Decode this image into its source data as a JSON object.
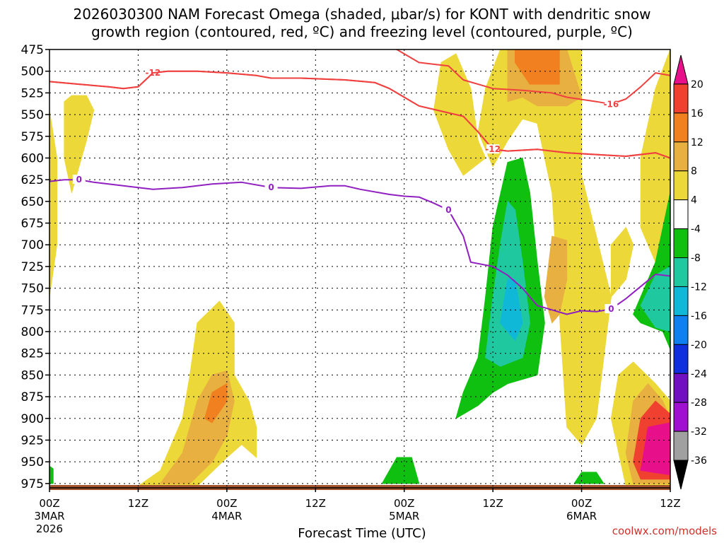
{
  "chart_data": {
    "type": "time-height",
    "title_line1": "2026030300 NAM Forecast Omega (shaded, μbar/s) for KONT with dendritic snow",
    "title_line2": "growth region (contoured, red, ºC) and freezing level (contoured, purple, ºC)",
    "xlabel": "Forecast Time (UTC)",
    "credit": "coolwx.com/models",
    "y_ticks": [
      475,
      500,
      525,
      550,
      575,
      600,
      625,
      650,
      675,
      700,
      725,
      750,
      775,
      800,
      825,
      850,
      875,
      900,
      925,
      950,
      975
    ],
    "ylim": [
      475,
      980
    ],
    "x_range_hours": [
      0,
      84
    ],
    "x_ticks": [
      {
        "hour": 0,
        "label": "00Z",
        "sub1": "3MAR",
        "sub2": "2026"
      },
      {
        "hour": 12,
        "label": "12Z",
        "sub1": "",
        "sub2": ""
      },
      {
        "hour": 24,
        "label": "00Z",
        "sub1": "4MAR",
        "sub2": ""
      },
      {
        "hour": 36,
        "label": "12Z",
        "sub1": "",
        "sub2": ""
      },
      {
        "hour": 48,
        "label": "00Z",
        "sub1": "5MAR",
        "sub2": ""
      },
      {
        "hour": 60,
        "label": "12Z",
        "sub1": "",
        "sub2": ""
      },
      {
        "hour": 72,
        "label": "00Z",
        "sub1": "6MAR",
        "sub2": ""
      },
      {
        "hour": 84,
        "label": "12Z",
        "sub1": "",
        "sub2": ""
      }
    ],
    "colorbar": {
      "labels": [
        "20",
        "16",
        "12",
        "8",
        "4",
        "-4",
        "-8",
        "-12",
        "-16",
        "-20",
        "-24",
        "-28",
        "-32",
        "-36"
      ],
      "colors": [
        "#e8108a",
        "#f04030",
        "#f08020",
        "#e8b040",
        "#ecd838",
        "#ffffff",
        "#10c010",
        "#20c8a0",
        "#10b8d8",
        "#1080f0",
        "#1030e0",
        "#7010c0",
        "#a010d0",
        "#a0a0a0",
        "#000000"
      ]
    },
    "contours": {
      "dendritic_lower": {
        "label": "-12",
        "color": "#f04040",
        "points": [
          [
            0,
            512
          ],
          [
            4,
            515
          ],
          [
            8,
            518
          ],
          [
            10,
            520
          ],
          [
            12,
            518
          ],
          [
            13,
            510
          ],
          [
            14,
            502
          ],
          [
            16,
            500
          ],
          [
            20,
            500
          ],
          [
            24,
            502
          ],
          [
            28,
            505
          ],
          [
            30,
            508
          ],
          [
            34,
            508
          ],
          [
            40,
            510
          ],
          [
            44,
            513
          ],
          [
            46,
            520
          ],
          [
            48,
            530
          ],
          [
            50,
            540
          ],
          [
            54,
            548
          ],
          [
            56,
            552
          ],
          [
            58,
            570
          ],
          [
            60,
            590
          ],
          [
            62,
            592
          ],
          [
            66,
            590
          ],
          [
            70,
            594
          ],
          [
            74,
            596
          ],
          [
            78,
            598
          ],
          [
            82,
            594
          ],
          [
            84,
            600
          ]
        ]
      },
      "dendritic_upper": {
        "label": "-16",
        "color": "#f04040",
        "points": [
          [
            46,
            470
          ],
          [
            48,
            480
          ],
          [
            50,
            490
          ],
          [
            52,
            492
          ],
          [
            54,
            494
          ],
          [
            56,
            510
          ],
          [
            60,
            520
          ],
          [
            64,
            522
          ],
          [
            68,
            525
          ],
          [
            70,
            530
          ],
          [
            74,
            535
          ],
          [
            76,
            538
          ],
          [
            78,
            532
          ],
          [
            80,
            518
          ],
          [
            82,
            502
          ],
          [
            84,
            505
          ]
        ]
      },
      "freezing_level": {
        "label": "0",
        "color": "#9020c0",
        "points": [
          [
            0,
            627
          ],
          [
            2,
            625
          ],
          [
            4,
            625
          ],
          [
            6,
            628
          ],
          [
            10,
            632
          ],
          [
            14,
            636
          ],
          [
            18,
            634
          ],
          [
            22,
            630
          ],
          [
            26,
            628
          ],
          [
            30,
            634
          ],
          [
            34,
            635
          ],
          [
            38,
            632
          ],
          [
            40,
            632
          ],
          [
            42,
            636
          ],
          [
            46,
            642
          ],
          [
            48,
            644
          ],
          [
            50,
            645
          ],
          [
            52,
            652
          ],
          [
            54,
            660
          ],
          [
            56,
            690
          ],
          [
            57,
            720
          ],
          [
            60,
            725
          ],
          [
            62,
            735
          ],
          [
            64,
            750
          ],
          [
            66,
            770
          ],
          [
            68,
            775
          ],
          [
            70,
            780
          ],
          [
            72,
            776
          ],
          [
            74,
            777
          ],
          [
            76,
            774
          ],
          [
            78,
            762
          ],
          [
            80,
            748
          ],
          [
            82,
            734
          ],
          [
            84,
            736
          ]
        ]
      }
    },
    "omega_regions": [
      {
        "level": "4",
        "color": "#ecd838",
        "points": [
          [
            2,
            535
          ],
          [
            3,
            528
          ],
          [
            5,
            528
          ],
          [
            6,
            545
          ],
          [
            5,
            580
          ],
          [
            4,
            610
          ],
          [
            3,
            640
          ],
          [
            2,
            600
          ]
        ]
      },
      {
        "level": "4",
        "color": "#ecd838",
        "points": [
          [
            0,
            545
          ],
          [
            1,
            600
          ],
          [
            1,
            700
          ],
          [
            0,
            760
          ]
        ]
      },
      {
        "level": "4",
        "color": "#ecd838",
        "points": [
          [
            12,
            978
          ],
          [
            15,
            960
          ],
          [
            18,
            900
          ],
          [
            19,
            850
          ],
          [
            20,
            790
          ],
          [
            23,
            765
          ],
          [
            25,
            790
          ],
          [
            25,
            850
          ],
          [
            27,
            880
          ],
          [
            28,
            910
          ],
          [
            28,
            945
          ],
          [
            26,
            930
          ],
          [
            24,
            945
          ],
          [
            20,
            978
          ]
        ]
      },
      {
        "level": "8",
        "color": "#e8b040",
        "points": [
          [
            15,
            975
          ],
          [
            18,
            940
          ],
          [
            20,
            880
          ],
          [
            22,
            850
          ],
          [
            24,
            845
          ],
          [
            25,
            880
          ],
          [
            24,
            920
          ],
          [
            22,
            950
          ],
          [
            19,
            975
          ]
        ]
      },
      {
        "level": "12",
        "color": "#f08020",
        "points": [
          [
            21,
            900
          ],
          [
            22,
            870
          ],
          [
            24,
            860
          ],
          [
            24,
            880
          ],
          [
            22,
            905
          ]
        ]
      },
      {
        "level": "4",
        "color": "#ecd838",
        "points": [
          [
            52,
            545
          ],
          [
            53,
            490
          ],
          [
            55,
            480
          ],
          [
            57,
            520
          ],
          [
            58,
            580
          ],
          [
            59,
            600
          ],
          [
            56,
            620
          ],
          [
            54,
            590
          ]
        ]
      },
      {
        "level": "4",
        "color": "#ecd838",
        "points": [
          [
            61,
            475
          ],
          [
            72,
            475
          ],
          [
            72,
            620
          ],
          [
            74,
            690
          ],
          [
            76,
            760
          ],
          [
            74,
            900
          ],
          [
            72,
            930
          ],
          [
            70,
            910
          ],
          [
            69,
            780
          ],
          [
            68,
            640
          ],
          [
            66,
            560
          ],
          [
            64,
            555
          ],
          [
            62,
            580
          ],
          [
            60,
            610
          ],
          [
            58,
            570
          ],
          [
            59,
            520
          ]
        ]
      },
      {
        "level": "8",
        "color": "#e8b040",
        "points": [
          [
            62,
            475
          ],
          [
            70,
            475
          ],
          [
            72,
            530
          ],
          [
            70,
            540
          ],
          [
            66,
            540
          ],
          [
            64,
            530
          ],
          [
            62,
            535
          ]
        ]
      },
      {
        "level": "12",
        "color": "#f08020",
        "points": [
          [
            63,
            475
          ],
          [
            69,
            475
          ],
          [
            69,
            515
          ],
          [
            65,
            515
          ],
          [
            63,
            490
          ]
        ]
      },
      {
        "level": "8",
        "color": "#e8b040",
        "points": [
          [
            68,
            690
          ],
          [
            70,
            695
          ],
          [
            70,
            740
          ],
          [
            69,
            780
          ],
          [
            68,
            790
          ],
          [
            67,
            760
          ]
        ]
      },
      {
        "level": "4",
        "color": "#ecd838",
        "points": [
          [
            76,
            700
          ],
          [
            78,
            680
          ],
          [
            79,
            700
          ],
          [
            78,
            740
          ],
          [
            76,
            760
          ]
        ]
      },
      {
        "level": "4",
        "color": "#ecd838",
        "points": [
          [
            80,
            600
          ],
          [
            82,
            520
          ],
          [
            84,
            475
          ],
          [
            84,
            700
          ],
          [
            82,
            720
          ],
          [
            80,
            680
          ]
        ]
      },
      {
        "level": "4",
        "color": "#ecd838",
        "points": [
          [
            76,
            900
          ],
          [
            77,
            850
          ],
          [
            79,
            835
          ],
          [
            82,
            860
          ],
          [
            84,
            880
          ],
          [
            84,
            978
          ],
          [
            78,
            978
          ]
        ]
      },
      {
        "level": "8",
        "color": "#e8b040",
        "points": [
          [
            78,
            940
          ],
          [
            79,
            880
          ],
          [
            81,
            860
          ],
          [
            83,
            880
          ],
          [
            84,
            900
          ],
          [
            84,
            975
          ],
          [
            79,
            975
          ]
        ]
      },
      {
        "level": "16",
        "color": "#f04030",
        "points": [
          [
            79,
            950
          ],
          [
            80,
            900
          ],
          [
            82,
            880
          ],
          [
            84,
            895
          ],
          [
            84,
            970
          ],
          [
            80,
            970
          ]
        ]
      },
      {
        "level": "20",
        "color": "#e8108a",
        "points": [
          [
            80,
            960
          ],
          [
            81,
            910
          ],
          [
            84,
            905
          ],
          [
            84,
            965
          ]
        ]
      },
      {
        "level": "-8",
        "color": "#10c010",
        "points": [
          [
            55,
            900
          ],
          [
            56,
            870
          ],
          [
            58,
            830
          ],
          [
            59,
            760
          ],
          [
            60,
            680
          ],
          [
            62,
            605
          ],
          [
            64,
            600
          ],
          [
            65,
            640
          ],
          [
            66,
            720
          ],
          [
            67,
            790
          ],
          [
            66,
            850
          ],
          [
            62,
            860
          ],
          [
            60,
            870
          ],
          [
            58,
            885
          ]
        ]
      },
      {
        "level": "-12",
        "color": "#20c8a0",
        "points": [
          [
            59,
            830
          ],
          [
            60,
            760
          ],
          [
            61,
            700
          ],
          [
            62,
            650
          ],
          [
            63,
            660
          ],
          [
            64,
            720
          ],
          [
            65,
            790
          ],
          [
            64,
            830
          ],
          [
            61,
            840
          ]
        ]
      },
      {
        "level": "-16",
        "color": "#10b8d8",
        "points": [
          [
            61,
            790
          ],
          [
            62,
            740
          ],
          [
            63,
            740
          ],
          [
            64,
            790
          ],
          [
            63,
            810
          ]
        ]
      },
      {
        "level": "-8",
        "color": "#10c010",
        "points": [
          [
            79,
            780
          ],
          [
            82,
            720
          ],
          [
            84,
            640
          ],
          [
            84,
            820
          ],
          [
            83,
            800
          ],
          [
            80,
            790
          ]
        ]
      },
      {
        "level": "-12",
        "color": "#20c8a0",
        "points": [
          [
            80,
            770
          ],
          [
            82,
            735
          ],
          [
            84,
            725
          ],
          [
            84,
            800
          ],
          [
            82,
            795
          ]
        ]
      },
      {
        "level": "-8",
        "color": "#10c010",
        "points": [
          [
            45,
            975
          ],
          [
            47,
            945
          ],
          [
            49,
            945
          ],
          [
            50,
            975
          ]
        ]
      },
      {
        "level": "-8",
        "color": "#10c010",
        "points": [
          [
            71,
            975
          ],
          [
            72,
            962
          ],
          [
            74,
            962
          ],
          [
            75,
            975
          ]
        ]
      },
      {
        "level": "-8",
        "color": "#10c010",
        "points": [
          [
            0,
            975
          ],
          [
            0,
            955
          ],
          [
            0.5,
            958
          ],
          [
            0.5,
            975
          ]
        ]
      }
    ]
  }
}
